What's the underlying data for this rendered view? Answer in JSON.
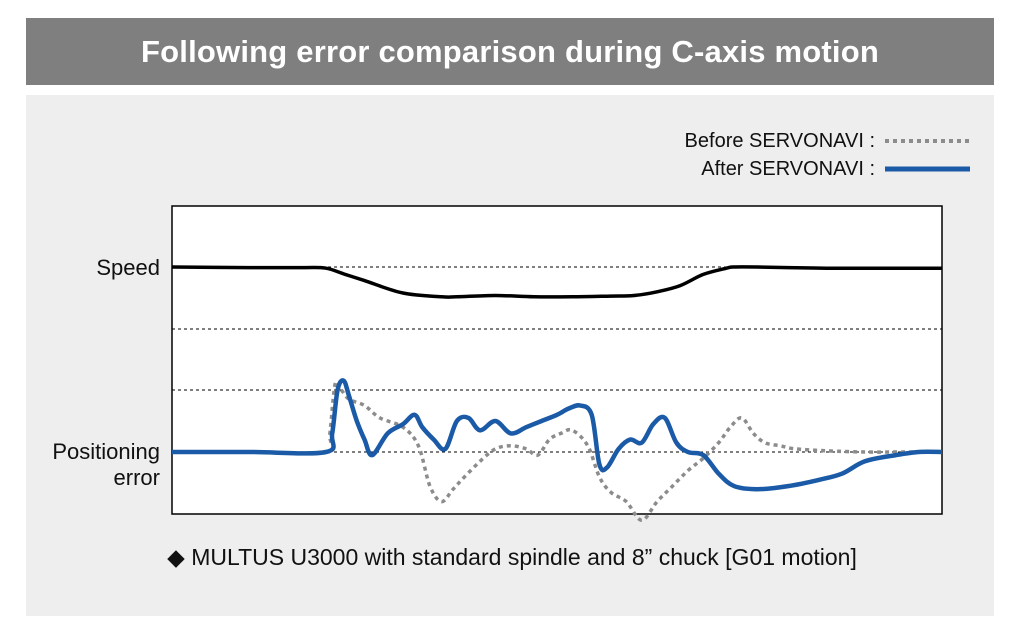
{
  "header": {
    "title": "Following error comparison during C-axis motion"
  },
  "footnote": {
    "text": "◆ MULTUS U3000 with standard spindle and 8” chuck [G01 motion]"
  },
  "legend": {
    "placement": "top-right",
    "items": [
      {
        "label": "Before SERVONAVI :",
        "style": "dotted",
        "color": "#8c8c8c"
      },
      {
        "label": "After SERVONAVI :",
        "style": "solid",
        "color": "#1a5aa6"
      }
    ]
  },
  "chart_data": {
    "type": "line",
    "title": "Following error comparison during C-axis motion",
    "y_tick_labels": [
      "Speed",
      "Positioning",
      "error"
    ],
    "xlim": [
      0,
      100
    ],
    "ylim": [
      -1,
      1
    ],
    "grid": "horizontal dotted",
    "series": [
      {
        "name": "Speed",
        "color": "#000000",
        "x": [
          0,
          10,
          17,
          20,
          22.5,
          25,
          30,
          35,
          37,
          42,
          47,
          52,
          57,
          60,
          63,
          66,
          69,
          72,
          73,
          76,
          80,
          85,
          90,
          95,
          100
        ],
        "y": [
          1.0,
          0.99,
          0.99,
          0.98,
          0.88,
          0.78,
          0.58,
          0.52,
          0.52,
          0.54,
          0.52,
          0.52,
          0.53,
          0.54,
          0.6,
          0.7,
          0.88,
          0.98,
          1.0,
          1.0,
          0.99,
          0.98,
          0.98,
          0.98,
          0.98
        ]
      },
      {
        "name": "Before SERVONAVI",
        "color": "#8c8c8c",
        "x": [
          0,
          10,
          20,
          20.5,
          21.2,
          22,
          23,
          25,
          27,
          30,
          32,
          33.5,
          35,
          36.5,
          38,
          40,
          42,
          44,
          46,
          47.5,
          49,
          50.5,
          52,
          54,
          55.5,
          57,
          59,
          61,
          63,
          65,
          67,
          69,
          71,
          72.5,
          74,
          75.5,
          77,
          79,
          81,
          85,
          90,
          95,
          100
        ],
        "y": [
          0,
          0,
          0,
          0.3,
          1.1,
          1.0,
          0.85,
          0.75,
          0.55,
          0.4,
          0.1,
          -0.55,
          -0.8,
          -0.6,
          -0.4,
          -0.15,
          0.05,
          0.1,
          0.05,
          -0.05,
          0.2,
          0.3,
          0.35,
          0.1,
          -0.4,
          -0.65,
          -0.8,
          -1.1,
          -0.8,
          -0.55,
          -0.3,
          -0.1,
          0.15,
          0.4,
          0.55,
          0.3,
          0.15,
          0.1,
          0.05,
          0.02,
          0.0,
          0.0,
          0.0
        ]
      },
      {
        "name": "After SERVONAVI",
        "color": "#1a5aa6",
        "x": [
          0,
          10,
          20,
          20.8,
          21.5,
          22.3,
          23,
          24,
          25,
          26,
          28,
          30,
          31.5,
          32.5,
          34,
          35.5,
          37,
          38.5,
          40,
          42,
          44,
          46,
          48,
          50,
          51.5,
          53,
          54.5,
          55.5,
          56.5,
          58,
          59.5,
          61,
          62.5,
          64,
          65.5,
          67,
          69,
          71,
          73,
          76,
          80,
          84,
          87,
          90,
          94,
          97,
          100
        ],
        "y": [
          0,
          0,
          0,
          0.3,
          1.0,
          1.15,
          0.9,
          0.5,
          0.2,
          -0.05,
          0.3,
          0.45,
          0.6,
          0.4,
          0.2,
          0.05,
          0.5,
          0.55,
          0.35,
          0.5,
          0.3,
          0.4,
          0.5,
          0.6,
          0.7,
          0.75,
          0.6,
          -0.2,
          -0.25,
          0.05,
          0.2,
          0.15,
          0.45,
          0.55,
          0.15,
          0.0,
          -0.05,
          -0.35,
          -0.55,
          -0.6,
          -0.55,
          -0.45,
          -0.35,
          -0.15,
          -0.05,
          0.0,
          0.0
        ]
      }
    ]
  }
}
